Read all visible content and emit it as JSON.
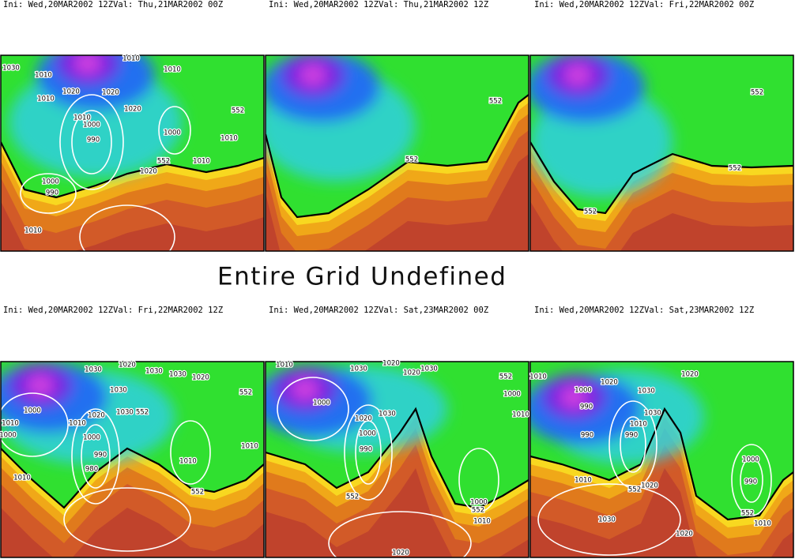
{
  "panels": [
    {
      "header": "Ini: Wed,20MAR2002 12ZVal: Thu,21MAR2002 00Z",
      "contour_labels": [
        "1030",
        "1010",
        "1010",
        "1010",
        "1020",
        "1020",
        "1020",
        "1010",
        "1010",
        "1000",
        "990",
        "1000",
        "552",
        "1010",
        "552",
        "1010",
        "1020",
        "1000",
        "990",
        "1010"
      ]
    },
    {
      "header": "Ini: Wed,20MAR2002 12ZVal: Thu,21MAR2002 12Z",
      "contour_labels": [
        "552",
        "552"
      ]
    },
    {
      "header": "Ini: Wed,20MAR2002 12ZVal: Fri,22MAR2002 00Z",
      "contour_labels": [
        "552",
        "552",
        "552"
      ]
    },
    {
      "header": "Ini: Wed,20MAR2002 12ZVal: Fri,22MAR2002 12Z",
      "contour_labels": [
        "1020",
        "1030",
        "1030",
        "1030",
        "1020",
        "552",
        "1000",
        "1030",
        "1030",
        "552",
        "1010",
        "1000",
        "1020",
        "1010",
        "1000",
        "990",
        "980",
        "1010",
        "1010",
        "552",
        "1010"
      ]
    },
    {
      "header": "Ini: Wed,20MAR2002 12ZVal: Sat,23MAR2002 00Z",
      "contour_labels": [
        "1010",
        "1030",
        "1020",
        "1020",
        "1030",
        "552",
        "1000",
        "1010",
        "1000",
        "1020",
        "1030",
        "1000",
        "990",
        "552",
        "1000",
        "552",
        "1010",
        "1020"
      ]
    },
    {
      "header": "Ini: Wed,20MAR2002 12ZVal: Sat,23MAR2002 12Z",
      "contour_labels": [
        "1010",
        "1000",
        "990",
        "990",
        "1020",
        "1030",
        "1020",
        "1030",
        "1010",
        "990",
        "1020",
        "552",
        "1010",
        "1030",
        "1000",
        "990",
        "552",
        "1010",
        "1020"
      ]
    }
  ],
  "center_message": "Entire Grid Undefined"
}
